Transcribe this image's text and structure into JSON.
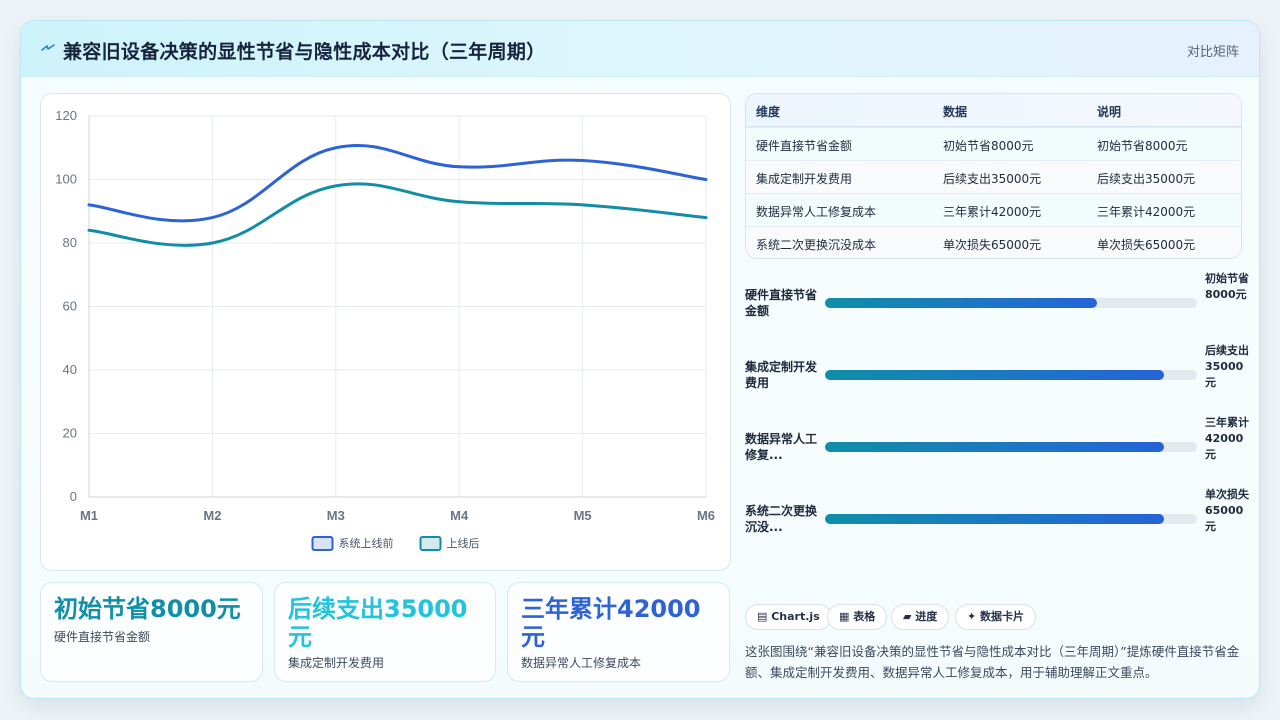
{
  "header": {
    "title": "兼容旧设备决策的显性节省与隐性成本对比（三年周期）",
    "view_label": "对比矩阵"
  },
  "chart_data": {
    "type": "line",
    "categories": [
      "M1",
      "M2",
      "M3",
      "M4",
      "M5",
      "M6"
    ],
    "series": [
      {
        "name": "系统上线前",
        "values": [
          92,
          88,
          110,
          104,
          106,
          100
        ],
        "color": "#2d63d6"
      },
      {
        "name": "上线后",
        "values": [
          84,
          80,
          98,
          93,
          92,
          88
        ],
        "color": "#138ca6"
      }
    ],
    "ylim": [
      0,
      120
    ],
    "yticks": [
      0,
      20,
      40,
      60,
      80,
      100,
      120
    ],
    "grid": true,
    "legend": "bottom"
  },
  "stats": [
    {
      "value": "初始节省8000元",
      "label": "硬件直接节省金额",
      "color": "#0f8fa8"
    },
    {
      "value": "后续支出35000元",
      "label": "集成定制开发费用",
      "color": "#22c3dc"
    },
    {
      "value": "三年累计42000元",
      "label": "数据异常人工修复成本",
      "color": "#2d63d6"
    }
  ],
  "table": {
    "headers": [
      "维度",
      "数据",
      "说明"
    ],
    "rows": [
      [
        "硬件直接节省金额",
        "初始节省8000元",
        "初始节省8000元"
      ],
      [
        "集成定制开发费用",
        "后续支出35000元",
        "后续支出35000元"
      ],
      [
        "数据异常人工修复成本",
        "三年累计42000元",
        "三年累计42000元"
      ],
      [
        "系统二次更换沉没成本",
        "单次损失65000元",
        "单次损失65000元"
      ]
    ]
  },
  "bars": [
    {
      "label": "硬件直接节省金额",
      "value": "初始节省8000元",
      "progress": 0.73
    },
    {
      "label": "集成定制开发费用",
      "value": "后续支出35000元",
      "progress": 0.91
    },
    {
      "label": "数据异常人工修复...",
      "value": "三年累计42000元",
      "progress": 0.91
    },
    {
      "label": "系统二次更换沉没...",
      "value": "单次损失65000元",
      "progress": 0.91
    }
  ],
  "chips": [
    {
      "icon": "chart-icon",
      "label": "Chart.js"
    },
    {
      "icon": "table-icon",
      "label": "表格"
    },
    {
      "icon": "progress-icon",
      "label": "进度"
    },
    {
      "icon": "sparkle-icon",
      "label": "数据卡片"
    }
  ],
  "description": "这张图围绕“兼容旧设备决策的显性节省与隐性成本对比（三年周期）”提炼硬件直接节省金额、集成定制开发费用、数据异常人工修复成本，用于辅助理解正文重点。"
}
